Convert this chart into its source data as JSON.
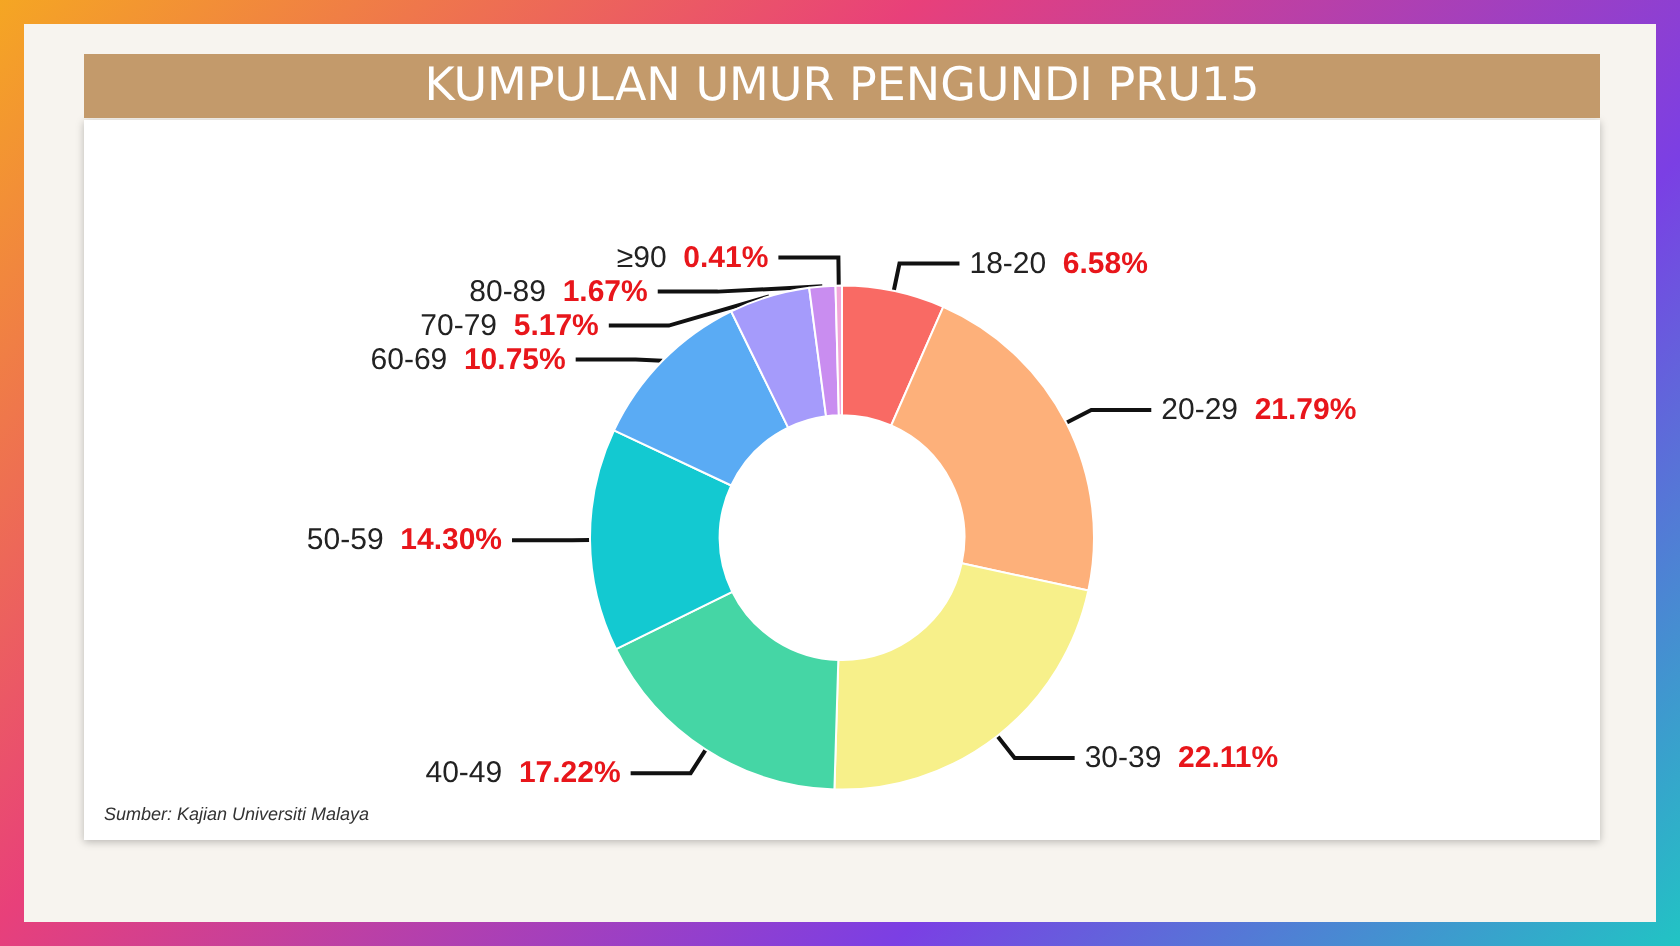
{
  "chart_data": {
    "type": "donut",
    "title": "KUMPULAN UMUR PENGUNDI PRU15",
    "categories": [
      "18-20",
      "20-29",
      "30-39",
      "40-49",
      "50-59",
      "60-69",
      "70-79",
      "80-89",
      "≥90"
    ],
    "values": [
      6.58,
      21.79,
      22.11,
      17.22,
      14.3,
      10.75,
      5.17,
      1.67,
      0.41
    ],
    "value_labels": [
      "6.58%",
      "21.79%",
      "22.11%",
      "17.22%",
      "14.30%",
      "10.75%",
      "5.17%",
      "1.67%",
      "0.41%"
    ],
    "colors": [
      "#f96a64",
      "#fdb07a",
      "#f7f08a",
      "#45d6a5",
      "#13c9d1",
      "#5aabf4",
      "#a59bfb",
      "#c98df0",
      "#f2a6d8"
    ],
    "annotations": [
      "Sumber: Kajian Universiti Malaya"
    ],
    "legend": false
  }
}
